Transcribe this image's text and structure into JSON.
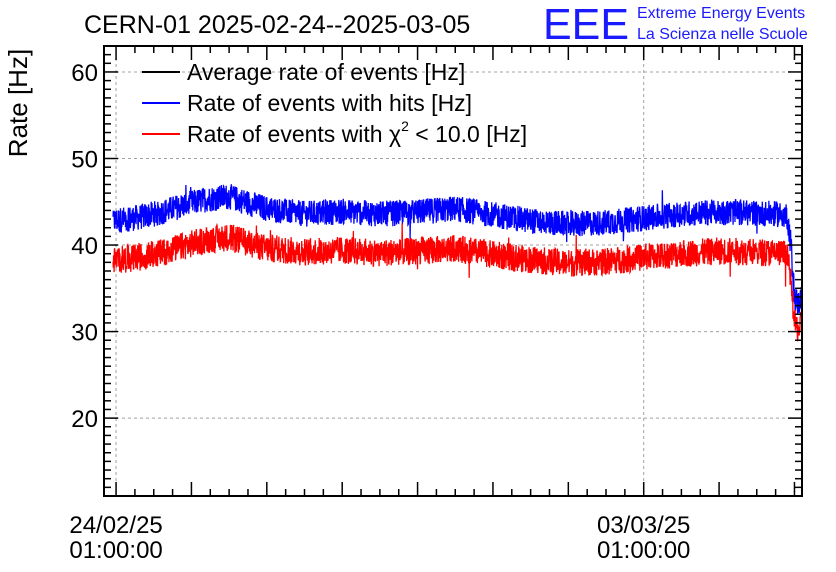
{
  "header": {
    "title": "CERN-01 2025-02-24--2025-03-05",
    "logo_text": "EEE",
    "logo_line1": "Extreme Energy Events",
    "logo_line2": "La Scienza nelle Scuole"
  },
  "colors": {
    "average": "#000000",
    "hits": "#0000ff",
    "chi2": "#ff0000",
    "grid": "#a0a0a0",
    "logo": "#1a1aff"
  },
  "chart_data": {
    "type": "line",
    "ylabel": "Rate [Hz]",
    "ylim": [
      11,
      63
    ],
    "yticks": [
      20,
      30,
      40,
      50,
      60
    ],
    "xlim_days": [
      -0.16,
      9.1
    ],
    "grid": true,
    "legend_position": "top-left",
    "x_ticks": [
      {
        "day": 0,
        "line1": "24/02/25",
        "line2": "01:00:00"
      },
      {
        "day": 7,
        "line1": "03/03/25",
        "line2": "01:00:00"
      }
    ],
    "x_start": "2025-02-24 01:00:00",
    "x_unit": "days",
    "legend": [
      {
        "key": "average",
        "label": "Average rate of events [Hz]"
      },
      {
        "key": "hits",
        "label": "Rate of events with hits [Hz]"
      },
      {
        "key": "chi2",
        "label_prefix": "Rate of events with ",
        "label_symbol": "χ",
        "label_sup": "2",
        "label_suffix": " < 10.0 [Hz]"
      }
    ],
    "series": [
      {
        "name": "Rate of events with hits [Hz]",
        "key": "hits",
        "noise_band": 3.0,
        "x": [
          -0.04,
          0.3,
          0.6,
          0.9,
          1.2,
          1.5,
          2.0,
          2.5,
          3.0,
          3.5,
          4.0,
          4.5,
          5.0,
          5.5,
          6.0,
          6.5,
          7.0,
          7.5,
          8.0,
          8.5,
          8.9,
          8.95,
          9.0,
          9.05,
          9.1
        ],
        "y": [
          42.8,
          43.2,
          43.8,
          44.6,
          45.3,
          45.6,
          44.2,
          43.6,
          43.9,
          43.6,
          43.8,
          44.2,
          43.5,
          42.8,
          42.4,
          42.6,
          43.1,
          43.6,
          43.8,
          43.7,
          43.5,
          40.5,
          34.0,
          33.2,
          34.0
        ]
      },
      {
        "name": "Rate of events with χ2 < 10.0 [Hz]",
        "key": "chi2",
        "noise_band": 3.2,
        "x": [
          -0.04,
          0.3,
          0.6,
          0.9,
          1.2,
          1.5,
          2.0,
          2.5,
          3.0,
          3.5,
          4.0,
          4.5,
          5.0,
          5.5,
          6.0,
          6.5,
          7.0,
          7.5,
          8.0,
          8.5,
          8.9,
          8.95,
          9.0,
          9.05,
          9.1
        ],
        "y": [
          38.2,
          38.6,
          39.1,
          39.9,
          40.6,
          40.9,
          39.6,
          39.2,
          39.4,
          39.1,
          39.3,
          39.6,
          38.9,
          38.3,
          37.9,
          38.1,
          38.6,
          39.0,
          39.3,
          39.2,
          39.0,
          36.0,
          31.0,
          30.2,
          31.0
        ]
      }
    ]
  }
}
